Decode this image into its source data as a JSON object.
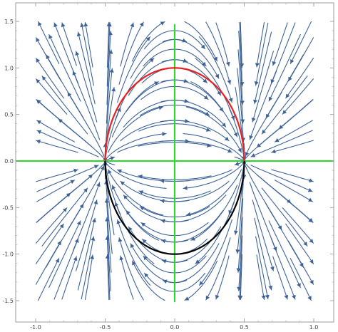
{
  "chart_data": {
    "type": "streamplot",
    "title": "",
    "xlabel": "",
    "ylabel": "",
    "xlim": [
      -1.0,
      1.0
    ],
    "ylim": [
      -1.5,
      1.5
    ],
    "x_ticks": [
      -1.0,
      -0.5,
      0.0,
      0.5,
      1.0
    ],
    "x_tick_labels": [
      "-1.0",
      "-0.5",
      "0.0",
      "0.5",
      "1.0"
    ],
    "y_ticks": [
      1.5,
      1.0,
      0.5,
      0.0,
      -0.5,
      -1.0,
      -1.5
    ],
    "y_tick_labels": [
      "1.5",
      "1.0",
      "0.5",
      "0.0",
      "-0.5",
      "-1.0",
      "-1.5"
    ],
    "vector_field": "v = (y, -4x·y² / (1 - 4x²)) ; streamlines circulate clockwise above y=0 and counter‑clockwise below",
    "vector_field_xrange": [
      -1.0,
      1.0
    ],
    "vector_field_yrange": [
      -1.45,
      1.45
    ],
    "overlay_curves": [
      {
        "name": "upper half-ellipse",
        "equation": "4x² + y² = 1, y ≥ 0",
        "color": "#e8201f"
      },
      {
        "name": "lower half-ellipse",
        "equation": "4x² + y² = 1, y ≤ 0",
        "color": "#000000"
      },
      {
        "name": "x-axis line",
        "equation": "y = 0",
        "color": "#22dd22"
      },
      {
        "name": "y-axis line",
        "equation": "x = 0",
        "color": "#22dd22"
      }
    ],
    "stream_color": "#3d6296",
    "grid": false,
    "legend": "none"
  }
}
